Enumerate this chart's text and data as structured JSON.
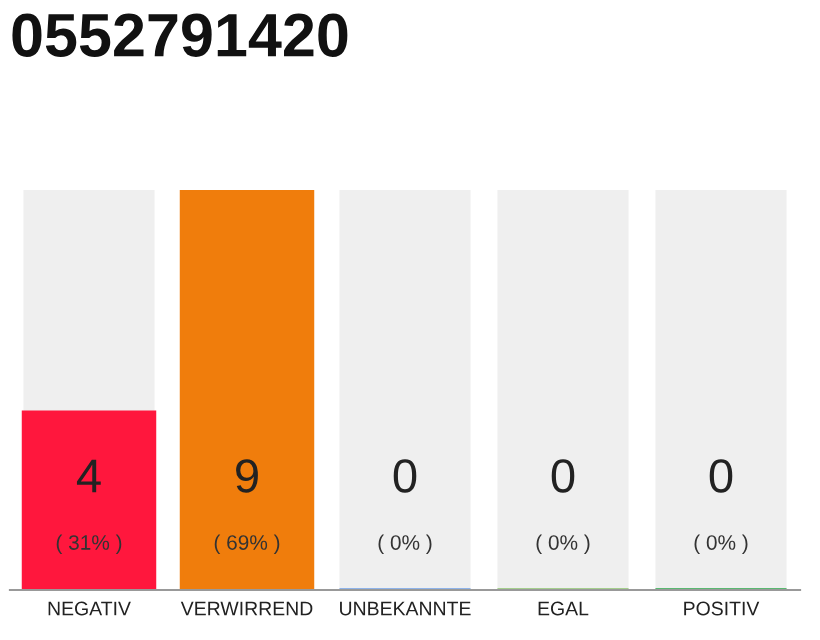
{
  "chart_data": {
    "type": "bar",
    "title": "0552791420",
    "categories": [
      "NEGATIV",
      "VERWIRREND",
      "UNBEKANNTE",
      "EGAL",
      "POSITIV"
    ],
    "values": [
      4,
      9,
      0,
      0,
      0
    ],
    "colors": [
      "#ff173d",
      "#f07d0c",
      "#6fa0e8",
      "#8cc46e",
      "#2aa748"
    ],
    "value_labels": [
      "4",
      "9",
      "0",
      "0",
      "0"
    ],
    "annotations": [
      "( 31% )",
      "( 69% )",
      "( 0% )",
      "( 0% )",
      "( 0% )"
    ],
    "grid": false
  }
}
